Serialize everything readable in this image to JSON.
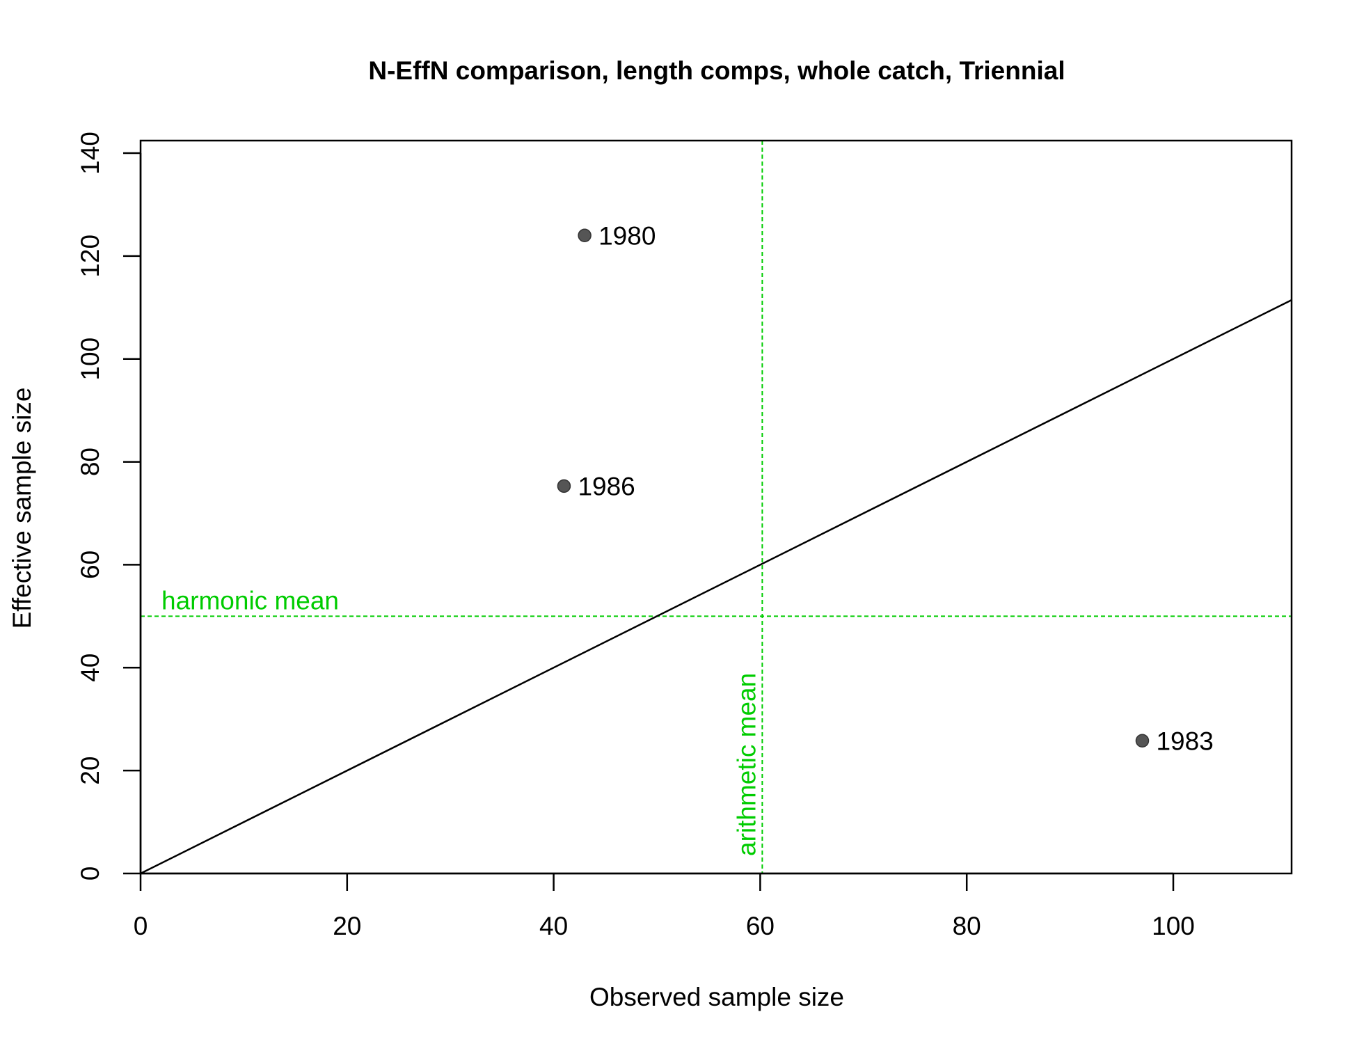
{
  "chart_data": {
    "type": "scatter",
    "title": "N-EffN comparison, length comps, whole catch, Triennial",
    "xlabel": "Observed sample size",
    "ylabel": "Effective sample size",
    "xlim": [
      0,
      111.5
    ],
    "ylim": [
      0,
      140
    ],
    "xticks": [
      "0",
      "20",
      "40",
      "60",
      "80",
      "100"
    ],
    "yticks": [
      "0",
      "20",
      "40",
      "60",
      "80",
      "100",
      "120",
      "140"
    ],
    "points": [
      {
        "label": "1980",
        "x": 43,
        "y": 124
      },
      {
        "label": "1986",
        "x": 41,
        "y": 75.3
      },
      {
        "label": "1983",
        "x": 97,
        "y": 25.8
      }
    ],
    "point_color": "#555555",
    "one_to_one_line": {
      "from": [
        0,
        0
      ],
      "to": [
        111.5,
        111.5
      ],
      "color": "#000000"
    },
    "reference_lines": [
      {
        "orientation": "horizontal",
        "value": 50,
        "label": "harmonic mean",
        "color": "#00cc00"
      },
      {
        "orientation": "vertical",
        "value": 60.2,
        "label": "arithmetic mean",
        "color": "#00cc00"
      }
    ]
  }
}
